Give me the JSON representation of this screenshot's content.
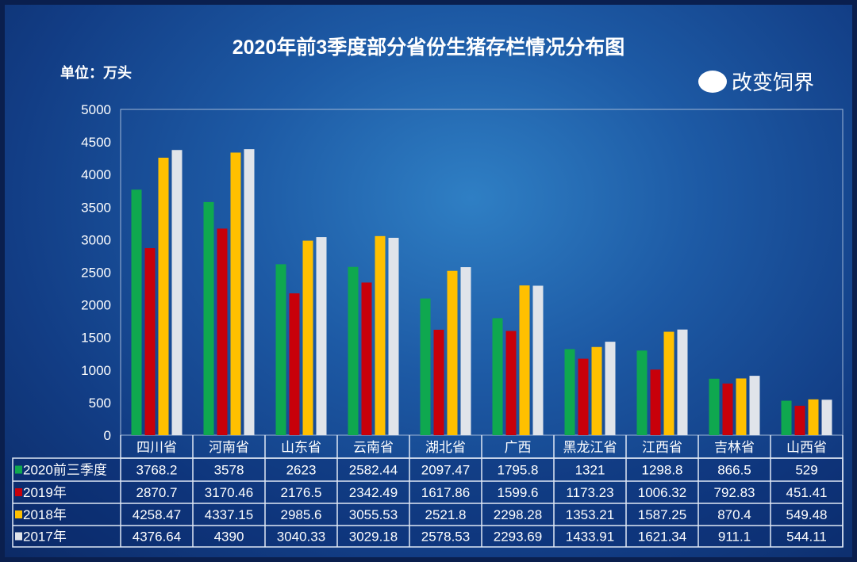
{
  "chart_data": {
    "type": "bar",
    "title": "2020年前3季度部分省份生猪存栏情况分布图",
    "ylabel": "单位：万头",
    "ylim": [
      0,
      5000
    ],
    "yticks": [
      0,
      500,
      1000,
      1500,
      2000,
      2500,
      3000,
      3500,
      4000,
      4500,
      5000
    ],
    "categories": [
      "四川省",
      "河南省",
      "山东省",
      "云南省",
      "湖北省",
      "广西",
      "黑龙江省",
      "江西省",
      "吉林省",
      "山西省"
    ],
    "series": [
      {
        "name": "2020前三季度",
        "color": "#0fa84f",
        "values": [
          3768.2,
          3578,
          2623,
          2582.44,
          2097.47,
          1795.8,
          1321,
          1298.8,
          866.5,
          529
        ]
      },
      {
        "name": "2019年",
        "color": "#c8000a",
        "values": [
          2870.7,
          3170.46,
          2176.5,
          2342.49,
          1617.86,
          1599.6,
          1173.23,
          1006.32,
          792.83,
          451.41
        ]
      },
      {
        "name": "2018年",
        "color": "#ffc000",
        "values": [
          4258.47,
          4337.15,
          2985.6,
          3055.53,
          2521.8,
          2298.28,
          1353.21,
          1587.25,
          870.4,
          549.48
        ]
      },
      {
        "name": "2017年",
        "color": "#e0e4ea",
        "values": [
          4376.64,
          4390,
          3040.33,
          3029.18,
          2578.53,
          2293.69,
          1433.91,
          1621.34,
          911.1,
          544.11
        ]
      }
    ],
    "legend": "data-table"
  },
  "watermark": "改变饲界"
}
